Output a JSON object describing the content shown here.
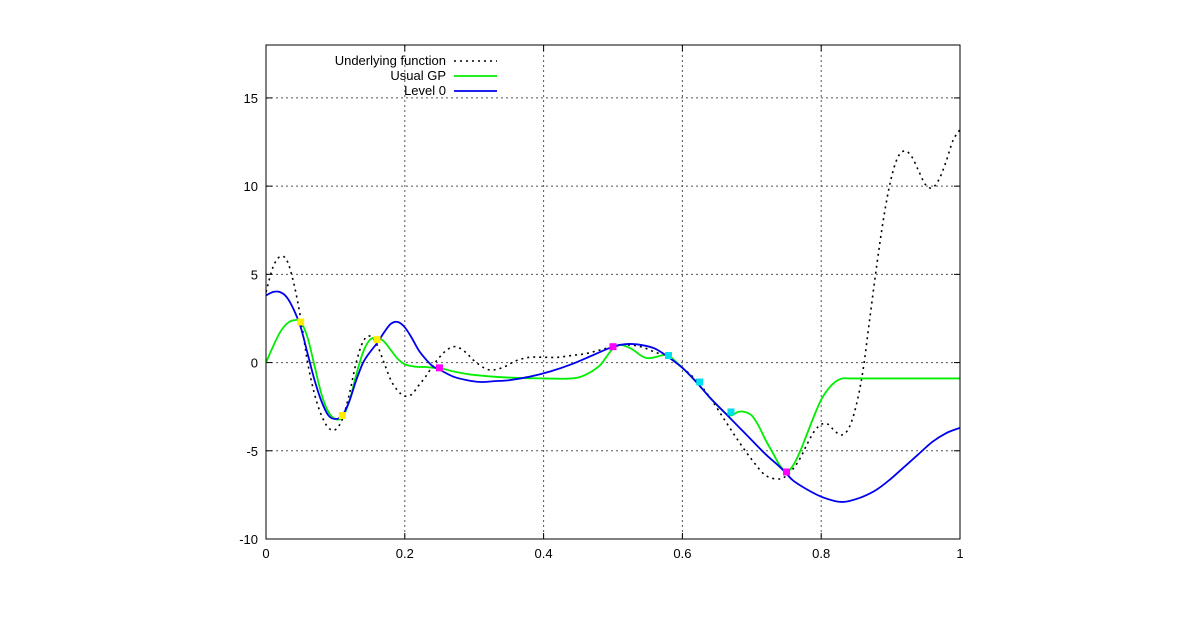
{
  "chart_data": {
    "type": "line",
    "title": "",
    "xlabel": "",
    "ylabel": "",
    "xlim": [
      0,
      1
    ],
    "ylim": [
      -10,
      18
    ],
    "grid": true,
    "legend_position": "top-left",
    "x_ticks": [
      "0",
      "0.2",
      "0.4",
      "0.6",
      "0.8",
      "1"
    ],
    "x_tick_values": [
      0,
      0.2,
      0.4,
      0.6,
      0.8,
      1
    ],
    "y_ticks": [
      "-10",
      "-5",
      "0",
      "5",
      "10",
      "15"
    ],
    "y_tick_values": [
      -10,
      -5,
      0,
      5,
      10,
      15
    ],
    "series": [
      {
        "name": "Underlying function",
        "color": "#000000",
        "style": "dotted",
        "x": [
          0,
          0.01,
          0.02,
          0.03,
          0.04,
          0.05,
          0.06,
          0.07,
          0.08,
          0.09,
          0.1,
          0.11,
          0.12,
          0.13,
          0.14,
          0.15,
          0.16,
          0.17,
          0.18,
          0.19,
          0.2,
          0.21,
          0.22,
          0.23,
          0.24,
          0.25,
          0.26,
          0.27,
          0.28,
          0.29,
          0.3,
          0.32,
          0.34,
          0.36,
          0.38,
          0.4,
          0.42,
          0.44,
          0.46,
          0.48,
          0.5,
          0.52,
          0.54,
          0.56,
          0.58,
          0.6,
          0.62,
          0.64,
          0.66,
          0.68,
          0.7,
          0.72,
          0.74,
          0.75,
          0.76,
          0.77,
          0.78,
          0.79,
          0.8,
          0.81,
          0.82,
          0.83,
          0.84,
          0.85,
          0.86,
          0.87,
          0.88,
          0.89,
          0.9,
          0.91,
          0.92,
          0.93,
          0.94,
          0.95,
          0.96,
          0.97,
          0.98,
          0.99,
          1.0
        ],
        "y": [
          4.0,
          5.4,
          6.0,
          5.8,
          4.5,
          2.5,
          0.0,
          -1.8,
          -3.0,
          -3.7,
          -3.8,
          -3.2,
          -1.8,
          0.0,
          1.2,
          1.5,
          1.0,
          0.0,
          -1.0,
          -1.6,
          -1.9,
          -1.8,
          -1.3,
          -0.8,
          -0.2,
          0.3,
          0.7,
          0.9,
          0.8,
          0.5,
          0.1,
          -0.4,
          -0.3,
          0.1,
          0.3,
          0.3,
          0.3,
          0.4,
          0.5,
          0.7,
          0.9,
          1.0,
          0.9,
          0.6,
          0.3,
          -0.3,
          -1.0,
          -2.0,
          -3.2,
          -4.4,
          -5.5,
          -6.4,
          -6.6,
          -6.4,
          -6.0,
          -5.4,
          -4.6,
          -3.9,
          -3.5,
          -3.5,
          -3.9,
          -4.1,
          -3.7,
          -2.5,
          -0.5,
          2.5,
          5.5,
          8.2,
          10.3,
          11.6,
          12.0,
          11.7,
          10.9,
          10.1,
          9.9,
          10.4,
          11.4,
          12.6,
          13.2
        ]
      },
      {
        "name": "Usual GP",
        "color": "#00ee00",
        "style": "solid",
        "x": [
          0,
          0.01,
          0.02,
          0.03,
          0.04,
          0.05,
          0.06,
          0.07,
          0.08,
          0.09,
          0.1,
          0.11,
          0.12,
          0.13,
          0.14,
          0.15,
          0.16,
          0.17,
          0.18,
          0.19,
          0.2,
          0.21,
          0.22,
          0.23,
          0.24,
          0.25,
          0.27,
          0.3,
          0.35,
          0.4,
          0.44,
          0.46,
          0.48,
          0.49,
          0.5,
          0.51,
          0.52,
          0.53,
          0.54,
          0.55,
          0.56,
          0.57,
          0.58,
          0.6,
          0.62,
          0.64,
          0.66,
          0.67,
          0.68,
          0.69,
          0.7,
          0.71,
          0.72,
          0.73,
          0.74,
          0.75,
          0.76,
          0.77,
          0.78,
          0.79,
          0.8,
          0.81,
          0.82,
          0.83,
          0.84,
          0.86,
          0.9,
          0.95,
          1.0
        ],
        "y": [
          0.0,
          0.9,
          1.7,
          2.2,
          2.4,
          2.3,
          1.4,
          -0.2,
          -1.8,
          -2.8,
          -3.2,
          -3.1,
          -2.2,
          -0.7,
          0.6,
          1.3,
          1.4,
          1.2,
          0.7,
          0.2,
          -0.1,
          -0.2,
          -0.25,
          -0.25,
          -0.3,
          -0.3,
          -0.5,
          -0.7,
          -0.85,
          -0.9,
          -0.9,
          -0.7,
          -0.2,
          0.3,
          0.8,
          1.0,
          0.9,
          0.7,
          0.4,
          0.25,
          0.3,
          0.4,
          0.4,
          -0.3,
          -1.1,
          -2.0,
          -2.8,
          -3.0,
          -2.8,
          -2.8,
          -3.0,
          -3.6,
          -4.4,
          -5.1,
          -5.8,
          -6.2,
          -5.8,
          -5.0,
          -4.0,
          -3.0,
          -2.1,
          -1.5,
          -1.1,
          -0.9,
          -0.9,
          -0.9,
          -0.9,
          -0.9,
          -0.9
        ]
      },
      {
        "name": "Level 0",
        "color": "#0000ee",
        "style": "solid",
        "x": [
          0,
          0.01,
          0.02,
          0.03,
          0.04,
          0.05,
          0.06,
          0.07,
          0.08,
          0.09,
          0.1,
          0.11,
          0.12,
          0.13,
          0.14,
          0.15,
          0.16,
          0.17,
          0.18,
          0.19,
          0.2,
          0.21,
          0.22,
          0.23,
          0.24,
          0.25,
          0.27,
          0.29,
          0.31,
          0.33,
          0.35,
          0.38,
          0.41,
          0.44,
          0.47,
          0.5,
          0.52,
          0.54,
          0.56,
          0.58,
          0.6,
          0.62,
          0.64,
          0.66,
          0.68,
          0.7,
          0.72,
          0.74,
          0.75,
          0.76,
          0.78,
          0.8,
          0.82,
          0.83,
          0.84,
          0.86,
          0.88,
          0.9,
          0.92,
          0.94,
          0.96,
          0.98,
          1.0
        ],
        "y": [
          3.8,
          4.0,
          4.0,
          3.7,
          3.0,
          2.0,
          0.5,
          -1.0,
          -2.2,
          -3.0,
          -3.2,
          -3.0,
          -2.2,
          -1.0,
          0.0,
          0.6,
          1.1,
          1.7,
          2.2,
          2.3,
          2.0,
          1.4,
          0.7,
          0.2,
          -0.2,
          -0.4,
          -0.8,
          -1.0,
          -1.1,
          -1.05,
          -1.0,
          -0.8,
          -0.5,
          -0.1,
          0.4,
          0.9,
          1.05,
          1.0,
          0.8,
          0.3,
          -0.3,
          -1.1,
          -2.0,
          -2.8,
          -3.6,
          -4.4,
          -5.2,
          -5.9,
          -6.3,
          -6.7,
          -7.2,
          -7.6,
          -7.85,
          -7.9,
          -7.85,
          -7.6,
          -7.2,
          -6.6,
          -5.9,
          -5.2,
          -4.5,
          -4.0,
          -3.7
        ]
      }
    ],
    "markers": [
      {
        "color": "#ffee00",
        "points": [
          [
            0.05,
            2.3
          ],
          [
            0.11,
            -3.0
          ],
          [
            0.16,
            1.3
          ]
        ]
      },
      {
        "color": "#ff00ff",
        "points": [
          [
            0.25,
            -0.3
          ],
          [
            0.5,
            0.9
          ],
          [
            0.75,
            -6.2
          ]
        ]
      },
      {
        "color": "#00e0ee",
        "points": [
          [
            0.58,
            0.4
          ],
          [
            0.625,
            -1.1
          ],
          [
            0.67,
            -2.8
          ]
        ]
      }
    ]
  }
}
